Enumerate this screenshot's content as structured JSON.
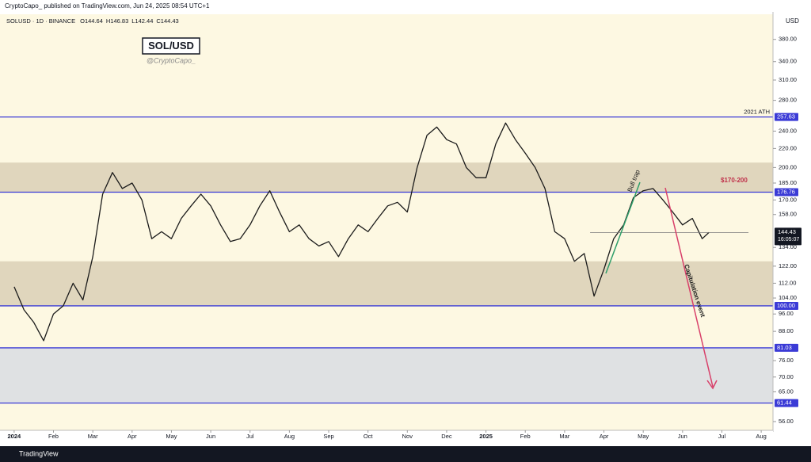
{
  "chart_data": {
    "type": "line",
    "publisher": "CryptoCapo_  published on TradingView.com, Jun 24, 2025 08:54 UTC+1",
    "symbol": "SOLUSD · 1D · BINANCE",
    "ohlc": [
      "O144.64",
      "H146.83",
      "L142.44",
      "C144.43"
    ],
    "title": "SOL/USD",
    "subtitle": "@CryptoCapo_",
    "currency": "USD",
    "brand": "TradingView",
    "log_scale": true,
    "xlim": [
      -0.36,
      19.3
    ],
    "ylim": [
      53.6,
      431
    ],
    "xticks": [
      {
        "value": 0,
        "label": "2024"
      },
      {
        "value": 1,
        "label": "Feb"
      },
      {
        "value": 2,
        "label": "Mar"
      },
      {
        "value": 3,
        "label": "Apr"
      },
      {
        "value": 4,
        "label": "May"
      },
      {
        "value": 5,
        "label": "Jun"
      },
      {
        "value": 6,
        "label": "Jul"
      },
      {
        "value": 7,
        "label": "Aug"
      },
      {
        "value": 8,
        "label": "Sep"
      },
      {
        "value": 9,
        "label": "Oct"
      },
      {
        "value": 10,
        "label": "Nov"
      },
      {
        "value": 11,
        "label": "Dec"
      },
      {
        "value": 12,
        "label": "2025"
      },
      {
        "value": 13,
        "label": "Feb"
      },
      {
        "value": 14,
        "label": "Mar"
      },
      {
        "value": 15,
        "label": "Apr"
      },
      {
        "value": 16,
        "label": "May"
      },
      {
        "value": 17,
        "label": "Jun"
      },
      {
        "value": 18,
        "label": "Jul"
      },
      {
        "value": 19,
        "label": "Aug"
      }
    ],
    "yticks": [
      {
        "value": 56,
        "label": "56.00"
      },
      {
        "value": 65,
        "label": "65.00"
      },
      {
        "value": 70,
        "label": "70.00"
      },
      {
        "value": 76,
        "label": "76.00"
      },
      {
        "value": 88,
        "label": "88.00"
      },
      {
        "value": 96,
        "label": "96.00"
      },
      {
        "value": 104,
        "label": "104.00"
      },
      {
        "value": 112,
        "label": "112.00"
      },
      {
        "value": 122,
        "label": "122.00"
      },
      {
        "value": 134,
        "label": "134.00"
      },
      {
        "value": 158,
        "label": "158.00"
      },
      {
        "value": 170,
        "label": "170.00"
      },
      {
        "value": 185,
        "label": "185.00"
      },
      {
        "value": 200,
        "label": "200.00"
      },
      {
        "value": 220,
        "label": "220.00"
      },
      {
        "value": 240,
        "label": "240.00"
      },
      {
        "value": 280,
        "label": "280.00"
      },
      {
        "value": 310,
        "label": "310.00"
      },
      {
        "value": 340,
        "label": "340.00"
      },
      {
        "value": 380,
        "label": "380.00"
      }
    ],
    "levels": [
      {
        "value": 257.63,
        "label": "257.63",
        "note": "2021 ATH"
      },
      {
        "value": 176.76,
        "label": "176.76"
      },
      {
        "value": 100,
        "label": "100.00"
      },
      {
        "value": 81.03,
        "label": "81.03"
      },
      {
        "value": 61.44,
        "label": "61.44"
      }
    ],
    "level_color": "#3b3bd6",
    "zones": [
      {
        "from": 176.76,
        "to": 205,
        "color": "#e0d6bd"
      },
      {
        "from": 100,
        "to": 125,
        "color": "#e0d6bd"
      },
      {
        "from": 61.44,
        "to": 81.03,
        "color": "#dfe1e3"
      }
    ],
    "zone_label": "$170-200",
    "annotations": [
      "Bull trap",
      "Capitulation event"
    ],
    "last_price": {
      "value": 144.43,
      "label": "144.43",
      "countdown": "16:05:07"
    },
    "series": [
      {
        "name": "SOLUSD",
        "color": "#1b1b1b",
        "x": [
          0,
          0.25,
          0.5,
          0.75,
          1,
          1.25,
          1.5,
          1.75,
          2,
          2.25,
          2.5,
          2.75,
          3,
          3.25,
          3.5,
          3.75,
          4,
          4.25,
          4.5,
          4.75,
          5,
          5.25,
          5.5,
          5.75,
          6,
          6.25,
          6.5,
          6.75,
          7,
          7.25,
          7.5,
          7.75,
          8,
          8.25,
          8.5,
          8.75,
          9,
          9.25,
          9.5,
          9.75,
          10,
          10.25,
          10.5,
          10.75,
          11,
          11.25,
          11.5,
          11.75,
          12,
          12.25,
          12.5,
          12.75,
          13,
          13.25,
          13.5,
          13.75,
          14,
          14.25,
          14.5,
          14.75,
          15,
          15.25,
          15.5,
          15.75,
          16,
          16.25,
          16.5,
          16.75,
          17,
          17.25,
          17.5,
          17.67
        ],
        "values": [
          110,
          98,
          92,
          84,
          96,
          100,
          112,
          103,
          128,
          175,
          195,
          180,
          185,
          170,
          140,
          145,
          140,
          155,
          165,
          175,
          165,
          150,
          138,
          140,
          150,
          165,
          178,
          160,
          145,
          150,
          140,
          135,
          138,
          128,
          140,
          150,
          145,
          155,
          165,
          168,
          160,
          200,
          235,
          245,
          230,
          225,
          200,
          190,
          190,
          225,
          250,
          230,
          215,
          200,
          180,
          145,
          140,
          125,
          130,
          105,
          120,
          140,
          150,
          172,
          178,
          180,
          170,
          160,
          150,
          155,
          140,
          144.43
        ]
      }
    ]
  }
}
